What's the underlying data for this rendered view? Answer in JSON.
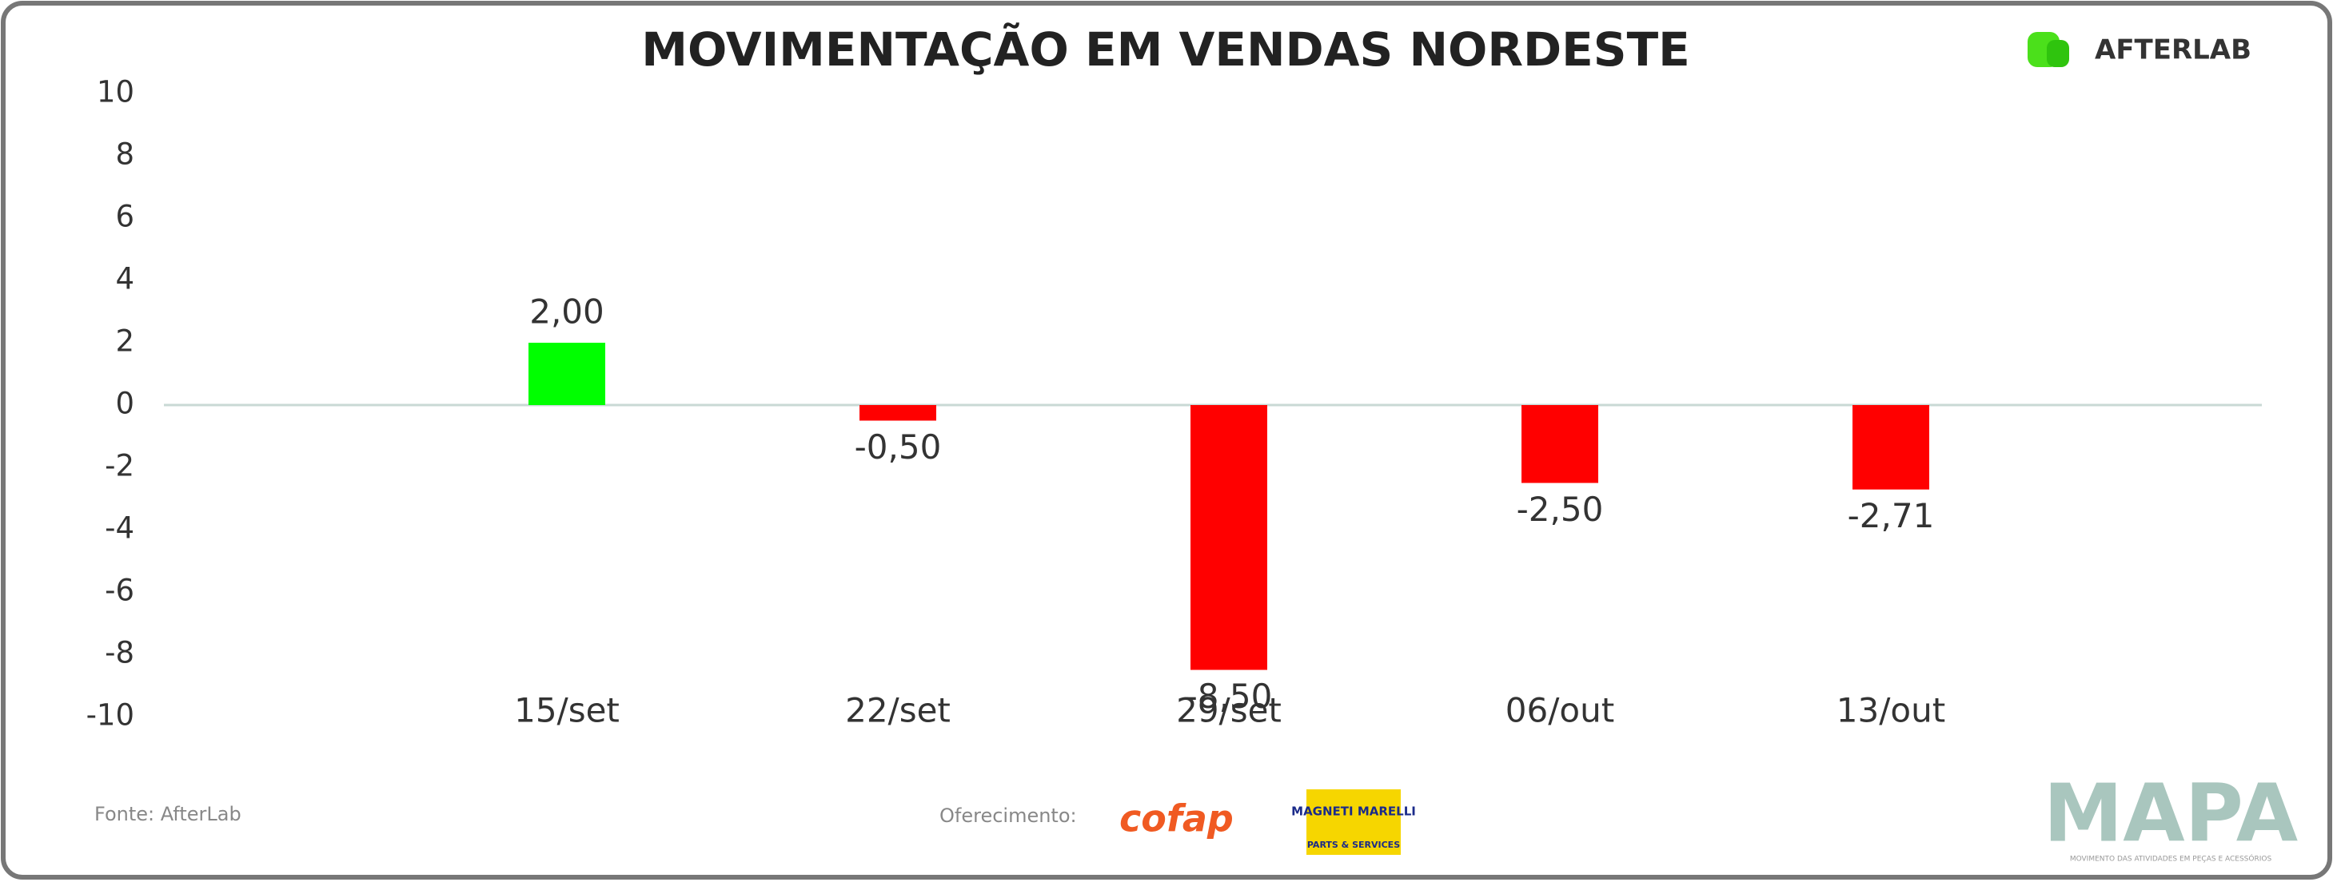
{
  "chart_data": {
    "type": "bar",
    "title": "MOVIMENTAÇÃO EM VENDAS NORDESTE",
    "categories": [
      "15/set",
      "22/set",
      "29/set",
      "06/out",
      "13/out"
    ],
    "values": [
      2.0,
      -0.5,
      -8.5,
      -2.5,
      -2.71
    ],
    "value_labels": [
      "2,00",
      "-0,50",
      "-8,50",
      "-2,50",
      "-2,71"
    ],
    "colors": [
      "#00ff00",
      "#ff0000",
      "#ff0000",
      "#ff0000",
      "#ff0000"
    ],
    "ylim": [
      -10,
      10
    ],
    "yticks": [
      -10,
      -8,
      -6,
      -4,
      -2,
      0,
      2,
      4,
      6,
      8,
      10
    ]
  },
  "footer": {
    "source": "Fonte: AfterLab",
    "sponsor_label": "Oferecimento:"
  },
  "branding": {
    "afterlab": "AFTERLAB",
    "cofap": "cofap",
    "magneti": "MAGNETI MARELLI",
    "magneti_sub": "PARTS & SERVICES",
    "mapa": "MAPA",
    "mapa_tagline": "MOVIMENTO DAS ATIVIDADES EM PEÇAS E ACESSÓRIOS"
  }
}
